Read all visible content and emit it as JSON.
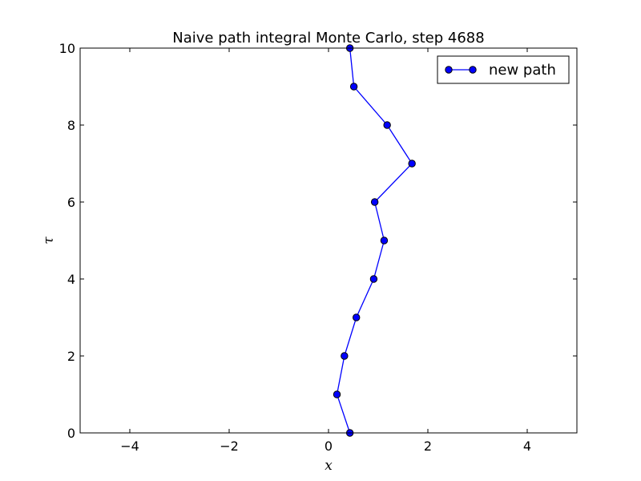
{
  "chart_data": {
    "type": "line",
    "title": "Naive path integral Monte Carlo, step 4688",
    "xlabel": "x",
    "ylabel": "τ",
    "xlim": [
      -5,
      5
    ],
    "ylim": [
      0,
      10
    ],
    "xticks": [
      -4,
      -2,
      0,
      2,
      4
    ],
    "xtick_labels": [
      "−4",
      "−2",
      "0",
      "2",
      "4"
    ],
    "yticks": [
      0,
      2,
      4,
      6,
      8,
      10
    ],
    "ytick_labels": [
      "0",
      "2",
      "4",
      "6",
      "8",
      "10"
    ],
    "grid": false,
    "legend_position": "top-right",
    "series": [
      {
        "name": "new path",
        "color": "#0000ff",
        "marker": "circle",
        "x": [
          0.43,
          0.17,
          0.32,
          0.56,
          0.91,
          1.12,
          0.93,
          1.68,
          1.18,
          0.51,
          0.43
        ],
        "y": [
          0,
          1,
          2,
          3,
          4,
          5,
          6,
          7,
          8,
          9,
          10
        ]
      }
    ]
  }
}
